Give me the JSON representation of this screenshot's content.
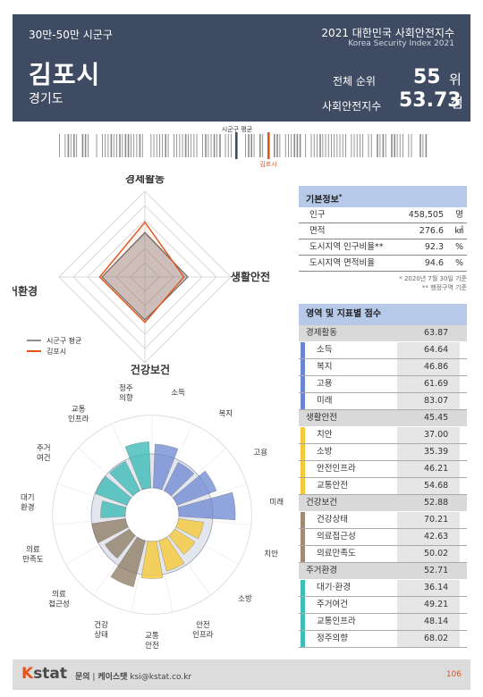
{
  "header": {
    "category": "30만-50만 시군구",
    "report_title": "2021 대한민국 사회안전지수",
    "report_title_en": "Korea Security Index 2021",
    "city": "김포시",
    "province": "경기도",
    "rank_label": "전체 순위",
    "rank_value": "55",
    "rank_unit": "위",
    "index_label": "사회안전지수",
    "index_value": "53.73",
    "index_unit": "점"
  },
  "strip": {
    "avg_label": "시군구 평균",
    "city_label": "김포시",
    "avg_color": "#3f4b63",
    "city_color": "#e2541a"
  },
  "chart_data": [
    {
      "type": "radar",
      "axes": [
        "경제활동",
        "생활안전",
        "건강보건",
        "주거환경"
      ],
      "ylim": [
        0,
        100
      ],
      "series": [
        {
          "name": "시군구 평균",
          "color": "#6b6b6b",
          "values": [
            52,
            50,
            50,
            50
          ]
        },
        {
          "name": "김포시",
          "color": "#e2541a",
          "values": [
            63.87,
            45.45,
            52.88,
            52.71
          ]
        }
      ],
      "legend_position": "bottom-left"
    },
    {
      "type": "polar-bar",
      "ylim": [
        0,
        100
      ],
      "categories": [
        "소득",
        "복지",
        "고용",
        "미래",
        "치안",
        "소방",
        "안전\n인프라",
        "교통\n안전",
        "건강\n상태",
        "의료\n접근성",
        "의료\n만족도",
        "대기\n환경",
        "주거\n여건",
        "교통\n인프라",
        "정주\n의향"
      ],
      "values": [
        64.64,
        46.86,
        61.69,
        83.07,
        37.0,
        35.39,
        46.21,
        54.68,
        70.21,
        42.63,
        50.02,
        36.14,
        49.21,
        48.14,
        68.02
      ],
      "colors": [
        "#6c87d2",
        "#6c87d2",
        "#6c87d2",
        "#6c87d2",
        "#f6c93a",
        "#f6c93a",
        "#f6c93a",
        "#f6c93a",
        "#a08b72",
        "#a08b72",
        "#a08b72",
        "#3fbdb6",
        "#3fbdb6",
        "#3fbdb6",
        "#3fbdb6"
      ]
    }
  ],
  "basic_info": {
    "title": "기본정보",
    "title_mark": "*",
    "rows": [
      {
        "label": "인구",
        "value": "458,505",
        "unit": "명"
      },
      {
        "label": "면적",
        "value": "276.6",
        "unit": "㎢"
      },
      {
        "label": "도시지역 인구비율**",
        "value": "92.3",
        "unit": "%"
      },
      {
        "label": "도시지역 면적비율",
        "value": "94.6",
        "unit": "%"
      }
    ],
    "note1": "* 2020년 7월 30일 기준",
    "note2": "** 행정구역 기준"
  },
  "scores": {
    "title": "영역 및 지표별 점수",
    "groups": [
      {
        "name": "경제활동",
        "score": "63.87",
        "color": "#6c87d2",
        "items": [
          {
            "name": "소득",
            "score": "64.64"
          },
          {
            "name": "복지",
            "score": "46.86"
          },
          {
            "name": "고용",
            "score": "61.69"
          },
          {
            "name": "미래",
            "score": "83.07"
          }
        ]
      },
      {
        "name": "생활안전",
        "score": "45.45",
        "color": "#f6c93a",
        "items": [
          {
            "name": "치안",
            "score": "37.00"
          },
          {
            "name": "소방",
            "score": "35.39"
          },
          {
            "name": "안전인프라",
            "score": "46.21"
          },
          {
            "name": "교통안전",
            "score": "54.68"
          }
        ]
      },
      {
        "name": "건강보건",
        "score": "52.88",
        "color": "#a08b72",
        "items": [
          {
            "name": "건강상태",
            "score": "70.21"
          },
          {
            "name": "의료접근성",
            "score": "42.63"
          },
          {
            "name": "의료만족도",
            "score": "50.02"
          }
        ]
      },
      {
        "name": "주거환경",
        "score": "52.71",
        "color": "#3fbdb6",
        "items": [
          {
            "name": "대기·환경",
            "score": "36.14"
          },
          {
            "name": "주거여건",
            "score": "49.21"
          },
          {
            "name": "교통인프라",
            "score": "48.14"
          },
          {
            "name": "정주의향",
            "score": "68.02"
          }
        ]
      }
    ]
  },
  "footer": {
    "logo_k": "K",
    "logo_rest": "stat",
    "contact_label": "문의",
    "contact_org": "케이스탯",
    "contact_email": "ksi@kstat.co.kr",
    "page_number": "106"
  }
}
